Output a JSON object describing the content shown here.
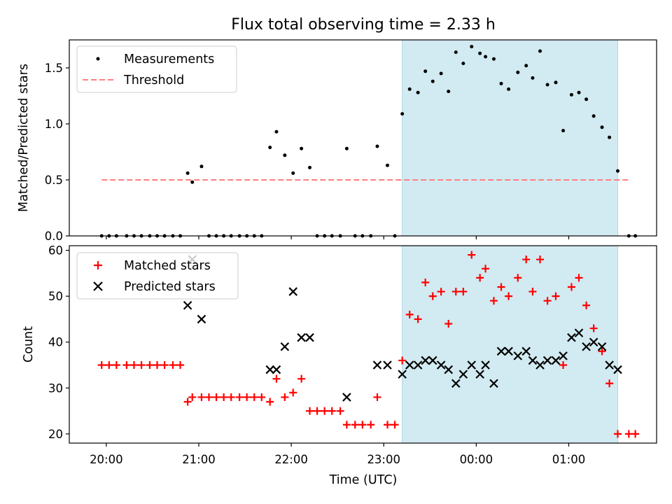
{
  "chart_data": [
    {
      "type": "scatter",
      "title": "Flux total observing time = 2.33 h",
      "xlabel": "",
      "ylabel": "Matched/Predicted stars",
      "xlim_hours": [
        19.6,
        25.95
      ],
      "ylim": [
        0,
        1.75
      ],
      "yticks": [
        0.0,
        0.5,
        1.0,
        1.5
      ],
      "y_tick_labels": [
        "0.0",
        "0.5",
        "1.0",
        "1.5"
      ],
      "x_tick_labels": [
        "20:00",
        "21:00",
        "22:00",
        "23:00",
        "00:00",
        "01:00"
      ],
      "highlight_span_hours": [
        23.2,
        25.53
      ],
      "legend": [
        "Measurements",
        "Threshold"
      ],
      "threshold": {
        "name": "Threshold",
        "value": 0.5,
        "x_range_hours": [
          19.95,
          25.65
        ],
        "color": "#ff7f7f"
      },
      "series": [
        {
          "name": "Measurements",
          "color": "#000000",
          "x": [
            19.95,
            20.03,
            20.11,
            20.22,
            20.3,
            20.38,
            20.47,
            20.55,
            20.63,
            20.72,
            20.8,
            20.88,
            20.93,
            21.03,
            21.11,
            21.19,
            21.27,
            21.35,
            21.44,
            21.52,
            21.6,
            21.68,
            21.77,
            21.84,
            21.93,
            22.02,
            22.11,
            22.2,
            22.28,
            22.36,
            22.44,
            22.53,
            22.6,
            22.69,
            22.77,
            22.86,
            22.93,
            23.04,
            23.12,
            23.2,
            23.28,
            23.37,
            23.45,
            23.53,
            23.62,
            23.7,
            23.78,
            23.86,
            23.95,
            24.04,
            24.1,
            24.19,
            24.27,
            24.35,
            24.45,
            24.54,
            24.61,
            24.69,
            24.77,
            24.86,
            24.94,
            25.03,
            25.11,
            25.19,
            25.27,
            25.36,
            25.44,
            25.53,
            25.65,
            25.72
          ],
          "y": [
            0,
            0,
            0,
            0,
            0,
            0,
            0,
            0,
            0,
            0,
            0,
            0.56,
            0.48,
            0.62,
            0,
            0,
            0,
            0,
            0,
            0,
            0,
            0,
            0.79,
            0.93,
            0.72,
            0.56,
            0.78,
            0.61,
            0,
            0,
            0,
            0,
            0.78,
            0,
            0,
            0,
            0.8,
            0.63,
            0,
            1.09,
            1.31,
            1.28,
            1.47,
            1.38,
            1.45,
            1.29,
            1.64,
            1.54,
            1.69,
            1.63,
            1.6,
            1.58,
            1.36,
            1.31,
            1.46,
            1.52,
            1.41,
            1.65,
            1.35,
            1.37,
            0.94,
            1.26,
            1.28,
            1.22,
            1.07,
            0.97,
            0.88,
            0.58,
            0,
            0
          ]
        }
      ]
    },
    {
      "type": "scatter",
      "title": "",
      "xlabel": "Time (UTC)",
      "ylabel": "Count",
      "xlim_hours": [
        19.6,
        25.95
      ],
      "ylim": [
        18,
        61
      ],
      "yticks": [
        20,
        30,
        40,
        50,
        60
      ],
      "y_tick_labels": [
        "20",
        "30",
        "40",
        "50",
        "60"
      ],
      "x_tick_labels": [
        "20:00",
        "21:00",
        "22:00",
        "23:00",
        "00:00",
        "01:00"
      ],
      "highlight_span_hours": [
        23.2,
        25.53
      ],
      "legend": [
        "Matched stars",
        "Predicted stars"
      ],
      "series": [
        {
          "name": "Matched stars",
          "color": "#ff0000",
          "marker": "+",
          "x": [
            19.95,
            20.03,
            20.11,
            20.22,
            20.3,
            20.38,
            20.47,
            20.55,
            20.63,
            20.72,
            20.8,
            20.88,
            20.93,
            21.03,
            21.11,
            21.19,
            21.27,
            21.35,
            21.44,
            21.52,
            21.6,
            21.68,
            21.77,
            21.84,
            21.93,
            22.02,
            22.11,
            22.2,
            22.28,
            22.36,
            22.44,
            22.53,
            22.6,
            22.69,
            22.77,
            22.86,
            22.93,
            23.04,
            23.12,
            23.2,
            23.28,
            23.37,
            23.45,
            23.53,
            23.62,
            23.7,
            23.78,
            23.86,
            23.95,
            24.04,
            24.1,
            24.19,
            24.27,
            24.35,
            24.45,
            24.54,
            24.61,
            24.69,
            24.77,
            24.86,
            24.94,
            25.03,
            25.11,
            25.19,
            25.27,
            25.36,
            25.44,
            25.53,
            25.65,
            25.72
          ],
          "y": [
            35,
            35,
            35,
            35,
            35,
            35,
            35,
            35,
            35,
            35,
            35,
            27,
            28,
            28,
            28,
            28,
            28,
            28,
            28,
            28,
            28,
            28,
            27,
            32,
            28,
            29,
            32,
            25,
            25,
            25,
            25,
            25,
            22,
            22,
            22,
            22,
            28,
            22,
            22,
            36,
            46,
            45,
            53,
            50,
            51,
            44,
            51,
            51,
            59,
            54,
            56,
            49,
            52,
            50,
            54,
            58,
            51,
            58,
            49,
            50,
            35,
            52,
            54,
            48,
            43,
            38,
            31,
            20,
            20,
            20
          ]
        },
        {
          "name": "Predicted stars",
          "color": "#000000",
          "marker": "x",
          "x": [
            20.88,
            20.93,
            21.03,
            21.77,
            21.84,
            21.93,
            22.02,
            22.11,
            22.2,
            22.6,
            22.93,
            23.04,
            23.2,
            23.28,
            23.37,
            23.45,
            23.53,
            23.62,
            23.7,
            23.78,
            23.86,
            23.95,
            24.04,
            24.1,
            24.19,
            24.27,
            24.35,
            24.45,
            24.54,
            24.61,
            24.69,
            24.77,
            24.86,
            24.94,
            25.03,
            25.11,
            25.19,
            25.27,
            25.36,
            25.44,
            25.53
          ],
          "y": [
            48,
            58,
            45,
            34,
            34,
            39,
            51,
            41,
            41,
            28,
            35,
            35,
            33,
            35,
            35,
            36,
            36,
            35,
            34,
            31,
            33,
            35,
            33,
            35,
            31,
            38,
            38,
            37,
            38,
            36,
            35,
            36,
            36,
            37,
            41,
            42,
            39,
            40,
            39,
            35,
            34
          ]
        }
      ]
    }
  ]
}
